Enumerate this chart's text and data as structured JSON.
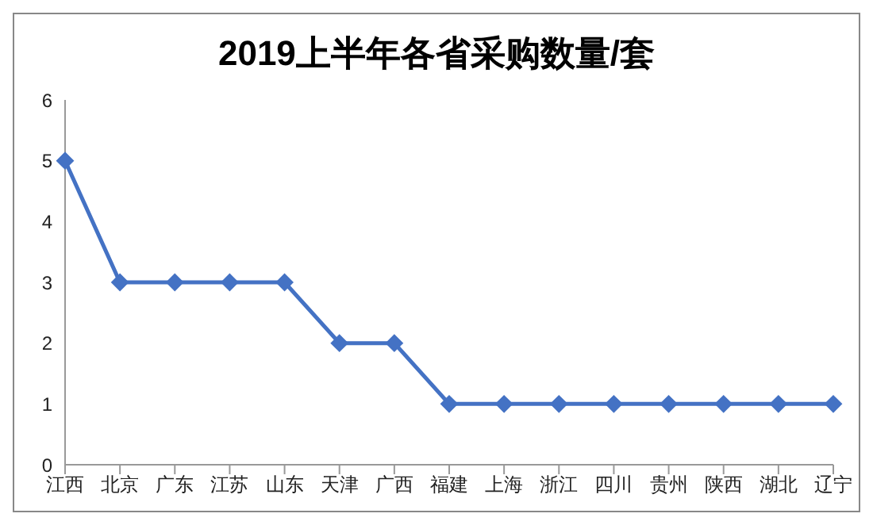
{
  "chart_data": {
    "type": "line",
    "title": "2019上半年各省采购数量/套",
    "categories": [
      "江西",
      "北京",
      "广东",
      "江苏",
      "山东",
      "天津",
      "广西",
      "福建",
      "上海",
      "浙江",
      "四川",
      "贵州",
      "陕西",
      "湖北",
      "辽宁"
    ],
    "values": [
      5,
      3,
      3,
      3,
      3,
      2,
      2,
      1,
      1,
      1,
      1,
      1,
      1,
      1,
      1
    ],
    "color": "#4472c4",
    "ylim": [
      0,
      6
    ],
    "yticks": [
      0,
      1,
      2,
      3,
      4,
      5,
      6
    ],
    "grid": false,
    "marker": "diamond",
    "legend": false
  }
}
